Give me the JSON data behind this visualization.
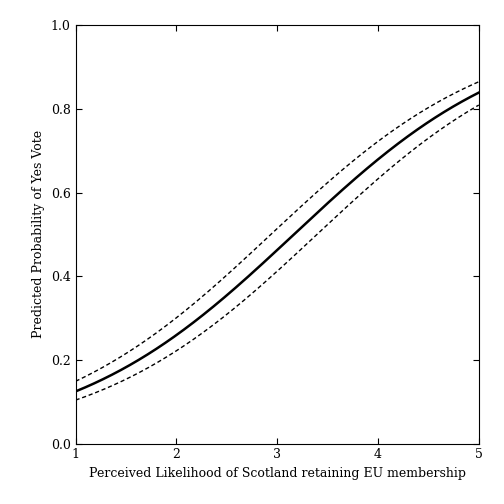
{
  "title": "",
  "xlabel": "Perceived Likelihood of Scotland retaining EU membership",
  "ylabel": "Predicted Probability of Yes Vote",
  "xlim": [
    1,
    5
  ],
  "ylim": [
    0.0,
    1.0
  ],
  "xticks": [
    1,
    2,
    3,
    4,
    5
  ],
  "yticks": [
    0.0,
    0.2,
    0.4,
    0.6,
    0.8,
    1.0
  ],
  "logistic_intercept": -2.85,
  "logistic_slope": 0.9,
  "se_logit": 0.105,
  "line_color": "#000000",
  "ci_color": "#000000",
  "background_color": "#ffffff",
  "figsize": [
    5.04,
    5.04
  ],
  "dpi": 100
}
